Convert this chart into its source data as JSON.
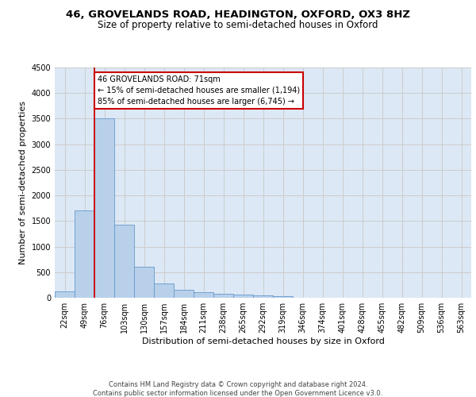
{
  "title_line1": "46, GROVELANDS ROAD, HEADINGTON, OXFORD, OX3 8HZ",
  "title_line2": "Size of property relative to semi-detached houses in Oxford",
  "xlabel": "Distribution of semi-detached houses by size in Oxford",
  "ylabel": "Number of semi-detached properties",
  "footer_line1": "Contains HM Land Registry data © Crown copyright and database right 2024.",
  "footer_line2": "Contains public sector information licensed under the Open Government Licence v3.0.",
  "categories": [
    "22sqm",
    "49sqm",
    "76sqm",
    "103sqm",
    "130sqm",
    "157sqm",
    "184sqm",
    "211sqm",
    "238sqm",
    "265sqm",
    "292sqm",
    "319sqm",
    "346sqm",
    "374sqm",
    "401sqm",
    "428sqm",
    "455sqm",
    "482sqm",
    "509sqm",
    "536sqm",
    "563sqm"
  ],
  "values": [
    120,
    1700,
    3500,
    1430,
    610,
    280,
    150,
    105,
    80,
    55,
    45,
    30,
    0,
    0,
    0,
    0,
    0,
    0,
    0,
    0,
    0
  ],
  "bar_color": "#b8d0ea",
  "bar_edge_color": "#6699cc",
  "property_line_x": 1.5,
  "property_size": "71sqm",
  "property_name": "46 GROVELANDS ROAD",
  "pct_smaller": 15,
  "pct_larger": 85,
  "count_smaller": "1,194",
  "count_larger": "6,745",
  "annotation_box_color": "#cc0000",
  "vline_color": "#cc0000",
  "ylim": [
    0,
    4500
  ],
  "yticks": [
    0,
    500,
    1000,
    1500,
    2000,
    2500,
    3000,
    3500,
    4000,
    4500
  ],
  "grid_color": "#cccccc",
  "bg_color": "#dce8f5",
  "title_fontsize": 9.5,
  "subtitle_fontsize": 8.5,
  "axis_label_fontsize": 8,
  "tick_fontsize": 7,
  "annotation_fontsize": 7,
  "footer_fontsize": 6
}
